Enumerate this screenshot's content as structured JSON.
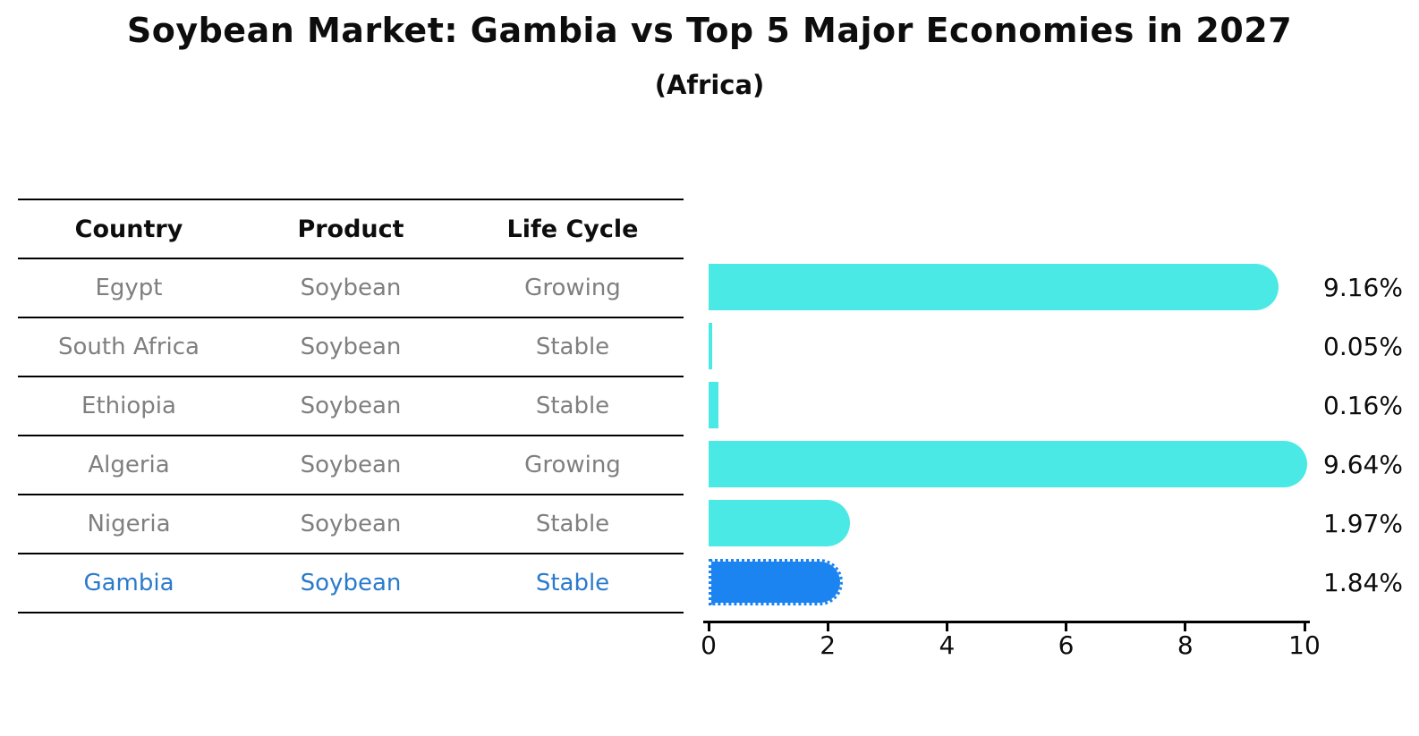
{
  "title": "Soybean Market: Gambia vs Top 5 Major Economies in 2027",
  "subtitle": "(Africa)",
  "table": {
    "headers": [
      "Country",
      "Product",
      "Life Cycle"
    ],
    "rows": [
      {
        "country": "Egypt",
        "product": "Soybean",
        "life_cycle": "Growing",
        "highlighted": false
      },
      {
        "country": "South Africa",
        "product": "Soybean",
        "life_cycle": "Stable",
        "highlighted": false
      },
      {
        "country": "Ethiopia",
        "product": "Soybean",
        "life_cycle": "Stable",
        "highlighted": false
      },
      {
        "country": "Algeria",
        "product": "Soybean",
        "life_cycle": "Growing",
        "highlighted": false
      },
      {
        "country": "Nigeria",
        "product": "Soybean",
        "life_cycle": "Stable",
        "highlighted": false
      },
      {
        "country": "Gambia",
        "product": "Soybean",
        "life_cycle": "Stable",
        "highlighted": true
      }
    ]
  },
  "chart_data": {
    "type": "bar",
    "orientation": "horizontal",
    "title": "Soybean Market: Gambia vs Top 5 Major Economies in 2027",
    "subtitle": "(Africa)",
    "categories": [
      "Egypt",
      "South Africa",
      "Ethiopia",
      "Algeria",
      "Nigeria",
      "Gambia"
    ],
    "values": [
      9.16,
      0.05,
      0.16,
      9.64,
      1.97,
      1.84
    ],
    "value_labels": [
      "9.16%",
      "0.05%",
      "0.16%",
      "9.64%",
      "1.97%",
      "1.84%"
    ],
    "xlim": [
      0,
      10
    ],
    "x_ticks": [
      0,
      2,
      4,
      6,
      8,
      10
    ],
    "grid": false,
    "legend": "none",
    "bar_color": "#4ae9e5",
    "highlight_color": "#1c84f0",
    "highlight_index": 5,
    "highlight_text_color": "#2a7acc",
    "table_text_color": "#7f7f7f"
  }
}
